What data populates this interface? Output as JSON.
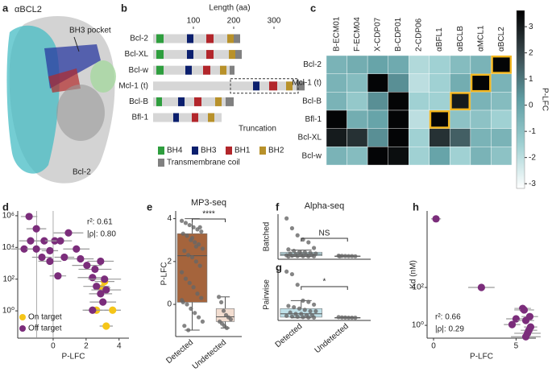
{
  "panel_labels": [
    "a",
    "b",
    "c",
    "d",
    "e",
    "f",
    "g",
    "h"
  ],
  "structure": {
    "title": "αBCL2",
    "annotations": [
      "BH3 pocket",
      "Bcl-2"
    ]
  },
  "chart_data": [
    {
      "type": "domain",
      "title": "Length (aa)",
      "categories": [
        "Bcl-2",
        "Bcl-XL",
        "Bcl-w",
        "Mcl-1 (t)",
        "Bcl-B",
        "Bfl-1"
      ],
      "values": [
        216,
        220,
        202,
        376,
        200,
        170
      ],
      "domains": [
        [
          [
            0,
            8,
            26
          ],
          [
            1,
            84,
            100
          ],
          [
            2,
            132,
            150
          ],
          [
            3,
            184,
            200
          ],
          [
            4,
            200,
            216
          ]
        ],
        [
          [
            0,
            8,
            26
          ],
          [
            1,
            84,
            100
          ],
          [
            2,
            132,
            150
          ],
          [
            3,
            188,
            204
          ],
          [
            4,
            204,
            220
          ]
        ],
        [
          [
            0,
            8,
            26
          ],
          [
            1,
            80,
            96
          ],
          [
            2,
            124,
            142
          ],
          [
            3,
            166,
            182
          ],
          [
            4,
            190,
            202
          ]
        ],
        [
          [
            1,
            248,
            264
          ],
          [
            2,
            288,
            308
          ],
          [
            3,
            330,
            346
          ],
          [
            4,
            356,
            376
          ]
        ],
        [
          [
            0,
            8,
            22
          ],
          [
            1,
            62,
            78
          ],
          [
            2,
            102,
            120
          ],
          [
            3,
            154,
            170
          ],
          [
            4,
            180,
            200
          ]
        ],
        [
          [
            1,
            50,
            64
          ],
          [
            2,
            96,
            112
          ],
          [
            3,
            136,
            152
          ]
        ]
      ],
      "box": {
        "label": "Truncation",
        "row": 3,
        "start": 192,
        "end": 360
      },
      "legend": [
        {
          "name": "BH4",
          "color": "#2e9e3e"
        },
        {
          "name": "BH3",
          "color": "#0b1f6e"
        },
        {
          "name": "BH1",
          "color": "#b2262b"
        },
        {
          "name": "BH2",
          "color": "#b8912a"
        },
        {
          "name": "Transmembrane coil",
          "color": "#808080"
        }
      ],
      "bar_color": "#d6d6d6",
      "xlim": [
        0,
        380
      ],
      "xticks": [
        100,
        200,
        300
      ]
    },
    {
      "type": "heatmap",
      "x_categories": [
        "B-ECM01",
        "F-ECM04",
        "X-CDP07",
        "B-CDP01",
        "2-CDP06",
        "αBFL1",
        "αBCLB",
        "αMCL1",
        "αBCL2"
      ],
      "y_categories": [
        "Bcl-2",
        "Mcl-1 (t)",
        "Bcl-B",
        "Bfl-1",
        "Bcl-XL",
        "Bcl-w"
      ],
      "values": [
        [
          -0.5,
          -0.3,
          0.0,
          -0.2,
          -1.8,
          -1.5,
          -0.8,
          -0.5,
          3.5
        ],
        [
          -0.5,
          -0.8,
          3.5,
          0.5,
          -2.0,
          -1.5,
          -0.3,
          3.5,
          -0.5
        ],
        [
          -0.5,
          -1.2,
          0.5,
          3.5,
          -1.5,
          -1.5,
          3.0,
          -0.5,
          -0.8
        ],
        [
          3.5,
          -0.3,
          0.0,
          3.5,
          -2.0,
          3.5,
          -1.0,
          -1.0,
          -1.5
        ],
        [
          3.0,
          2.5,
          0.5,
          3.5,
          -1.5,
          2.5,
          1.5,
          -0.5,
          -0.5
        ],
        [
          -0.5,
          -0.8,
          3.5,
          3.3,
          -1.5,
          0.0,
          -1.5,
          -0.5,
          -1.0
        ]
      ],
      "highlight": [
        [
          0,
          8
        ],
        [
          1,
          7
        ],
        [
          2,
          6
        ],
        [
          3,
          5
        ]
      ],
      "highlight_color": "#f2b61f",
      "colormap": [
        "#ffffff",
        "#9fd0d2",
        "#5f9da3",
        "#3a4a4f",
        "#000000"
      ],
      "colorbar_label": "P-LFC",
      "clim": [
        -3.18,
        3.62
      ],
      "cticks": [
        3,
        2,
        1,
        0,
        -1,
        -2,
        -3
      ]
    },
    {
      "type": "scatter",
      "xlabel": "P-LFC",
      "log_y": true,
      "legend": "lower left",
      "xlim": [
        -2.15,
        4.6
      ],
      "xticks": [
        0,
        2,
        4
      ],
      "ylim": [
        0.019,
        2000000
      ],
      "yticks": [
        {
          "value": 1,
          "label": "10⁰"
        },
        {
          "value": 100,
          "label": "10²"
        },
        {
          "value": 10000,
          "label": "10⁴"
        },
        {
          "value": 1000000,
          "label": "10⁶"
        }
      ],
      "vlines": [
        -1,
        0
      ],
      "annotations": [
        "r²: 0.61",
        "|ρ|: 0.80"
      ],
      "series": [
        {
          "name": "On target",
          "color": "#f5c518",
          "x": [
            3.12,
            2.98,
            2.63,
            3.61,
            3.22
          ],
          "values": [
            71,
            28,
            1.1,
            1.1,
            0.11
          ],
          "xerr": [
            0.6,
            0.5,
            0.7,
            0.5,
            0.4
          ]
        },
        {
          "name": "Off target",
          "color": "#7b2d7b",
          "x": [
            -1.46,
            -1.02,
            -1.37,
            -0.54,
            0.1,
            -1.76,
            -1.02,
            -0.2,
            0.44,
            0.93,
            1.41,
            -0.68,
            -0.2,
            0.68,
            1.66,
            0.29,
            2.05,
            2.54,
            2.88,
            2.39,
            3.12,
            2.63,
            3.22,
            2.88,
            3.02,
            2.39
          ],
          "values": [
            890000,
            150000,
            26000,
            26000,
            26000,
            8000,
            8000,
            6200,
            26000,
            83000,
            8000,
            2400,
            1350,
            2400,
            1900,
            160,
            740,
            420,
            1350,
            126,
            100,
            35,
            21,
            12,
            3.6,
            1.1
          ],
          "xerr": [
            0.5,
            0.6,
            0.7,
            0.5,
            0.6,
            0.8,
            0.6,
            0.5,
            0.7,
            0.9,
            0.8,
            0.6,
            0.7,
            0.6,
            0.8,
            0.5,
            0.9,
            1.0,
            0.8,
            0.9,
            1.0,
            0.8,
            0.9,
            0.7,
            0.8,
            0.6
          ]
        }
      ]
    },
    {
      "type": "box",
      "title": "MP3-seq",
      "ylabel": "P-LFC",
      "significance": "****",
      "categories": [
        "Detected",
        "Undetected"
      ],
      "colors": [
        "#a5643c",
        "#f2ddd0"
      ],
      "ylim": [
        -1.5,
        4.36
      ],
      "yticks": [
        0,
        2,
        4
      ],
      "boxes": [
        {
          "whislo": -1.2,
          "q1": 0.1,
          "med": 2.27,
          "q3": 3.3,
          "whishi": 4.0
        },
        {
          "whislo": -1.1,
          "q1": -0.8,
          "med": -0.58,
          "q3": -0.2,
          "whishi": 0.35
        }
      ],
      "points": [
        [
          3.9,
          3.8,
          3.7,
          3.6,
          3.5,
          3.4,
          3.3,
          3.2,
          3.0,
          2.9,
          2.8,
          2.6,
          2.5,
          2.3,
          2.2,
          2.0,
          1.8,
          1.5,
          1.2,
          1.0,
          0.8,
          0.5,
          0.3,
          0.1,
          0.0,
          -0.2,
          -0.4,
          -0.6,
          -0.8,
          -1.0,
          -1.2,
          3.1,
          2.7,
          3.6,
          0.2
        ],
        [
          0.35,
          0.1,
          -0.3,
          -0.5,
          -0.6,
          -0.7,
          -0.8,
          -0.9,
          -1.0,
          -1.1
        ]
      ]
    },
    {
      "type": "box",
      "title": "Alpha-seq",
      "ylabel": "Batched",
      "significance": "NS",
      "colors": [
        "#bfe0e8",
        "#bfe0e8"
      ],
      "ylim": [
        -2,
        30
      ],
      "boxes": [
        {
          "whislo": 0,
          "q1": 0.5,
          "med": 1.5,
          "q3": 3,
          "whishi": 4.5
        },
        {
          "whislo": 0.1,
          "q1": 0.15,
          "med": 0.2,
          "q3": 0.35,
          "whishi": 0.5
        }
      ],
      "points": [
        [
          27,
          20,
          15,
          12,
          10,
          6,
          5,
          4,
          3,
          3,
          2.5,
          2,
          2,
          1.5,
          1.5,
          1,
          1,
          0.8,
          0.5,
          0.3,
          0.2,
          0.1,
          0.1,
          0
        ],
        [
          0.5,
          0.4,
          0.3,
          0.2,
          0.2,
          0.1,
          0.1
        ]
      ]
    },
    {
      "type": "box",
      "ylabel": "Pairwise",
      "significance": "*",
      "categories": [
        "Detected",
        "Undetected"
      ],
      "colors": [
        "#bfe0e8",
        "#bfe0e8"
      ],
      "ylim": [
        -2,
        37
      ],
      "boxes": [
        {
          "whislo": 0,
          "q1": 0.5,
          "med": 3,
          "q3": 7,
          "whishi": 13
        },
        {
          "whislo": 0,
          "q1": 0.05,
          "med": 0.1,
          "q3": 0.2,
          "whishi": 0.5
        }
      ],
      "points": [
        [
          35,
          33,
          25,
          13,
          12,
          10,
          9,
          8,
          7,
          6,
          5,
          5,
          4,
          3,
          3,
          2,
          2,
          1.5,
          1,
          0.8,
          0.5,
          0.3,
          0.2
        ],
        [
          0.5,
          0.3,
          0.2,
          0.1,
          0.1,
          0.05
        ]
      ]
    },
    {
      "type": "scatter",
      "xlabel": "P-LFC",
      "ylabel": "Kd (nM)",
      "log_y": true,
      "xlim": [
        -0.39,
        6.2
      ],
      "xticks": [
        0,
        5
      ],
      "ylim": [
        0.21,
        1100000
      ],
      "yticks": [
        {
          "value": 1,
          "label": "10⁰"
        },
        {
          "value": 100,
          "label": "10²"
        }
      ],
      "annotations": [
        "r²: 0.66",
        "|ρ|: 0.29"
      ],
      "series": [
        {
          "color": "#7b2d7b",
          "x": [
            0.15,
            2.9,
            5.4,
            5.49,
            5.83,
            5.0,
            5.59,
            5.88,
            4.76,
            5.78,
            5.69,
            5.59
          ],
          "values": [
            420000,
            100,
            7.8,
            6.5,
            2.9,
            2.2,
            1.8,
            0.82,
            1.1,
            0.55,
            0.38,
            0.25
          ],
          "xerr": [
            0.3,
            0.8,
            0.5,
            0.6,
            0.5,
            0.6,
            0.5,
            0.4,
            0.5,
            0.5,
            0.8,
            0.9
          ]
        }
      ]
    }
  ]
}
